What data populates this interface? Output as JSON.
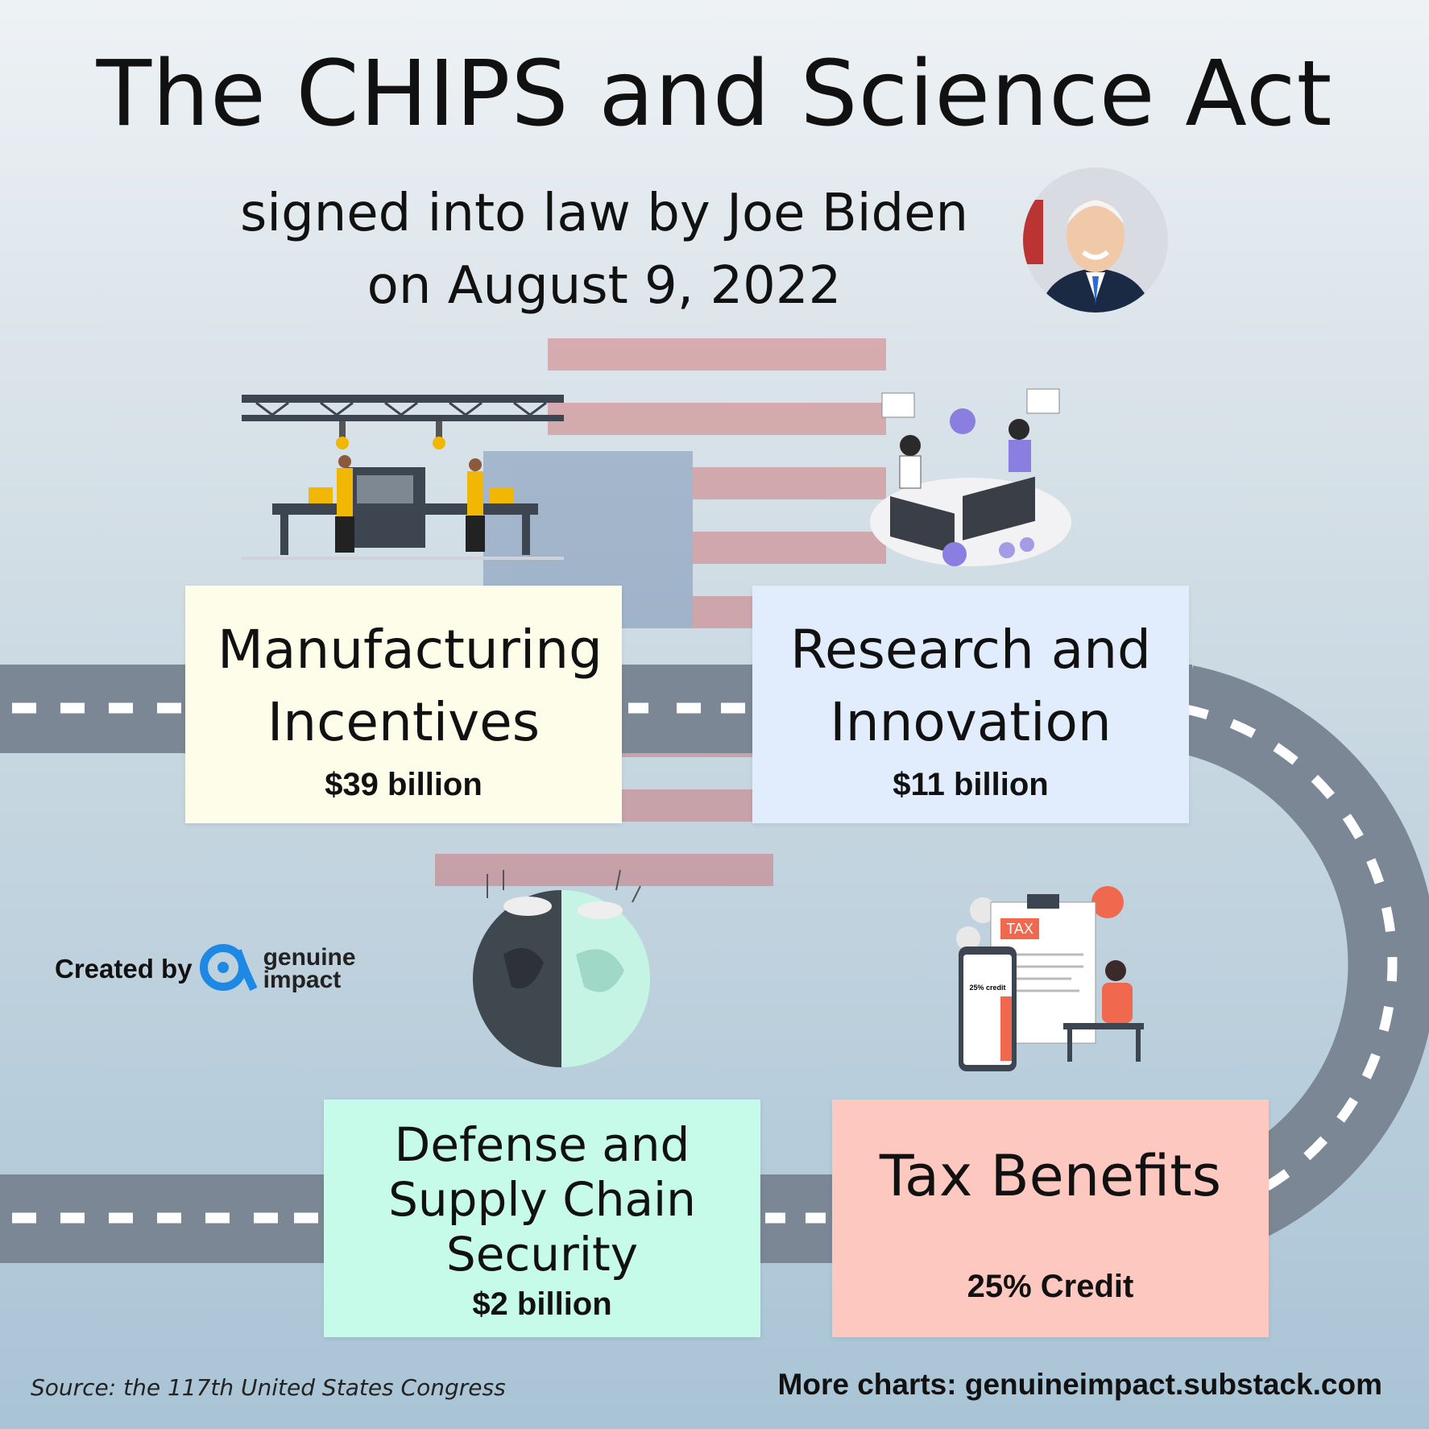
{
  "header": {
    "title": "The CHIPS and Science Act",
    "subtitle_line1": "signed into law by Joe Biden",
    "subtitle_line2": "on August 9, 2022"
  },
  "boxes": [
    {
      "label": "Manufacturing Incentives",
      "amount": "$39 billion",
      "color": "#fdfde9"
    },
    {
      "label": "Research and Innovation",
      "amount": "$11 billion",
      "color": "#e1ecfc"
    },
    {
      "label": "Defense and Supply Chain Security",
      "amount": "$2 billion",
      "color": "#c7fbe9"
    },
    {
      "label": "Tax Benefits",
      "amount": "25% Credit",
      "color": "#fdc8bf"
    }
  ],
  "calculator": {
    "screen_text": "25% credit"
  },
  "clipboard": {
    "tag": "TAX"
  },
  "credits": {
    "created_by": "Created by",
    "brand_line1": "genuine",
    "brand_line2": "impact",
    "brand_color": "#1e88e5"
  },
  "footer": {
    "source": "Source: the 117th United States Congress",
    "more": "More charts: genuineimpact.substack.com"
  },
  "icons": [
    "factory-illustration",
    "research-illustration",
    "globe-illustration",
    "tax-illustration",
    "avatar-photo",
    "genuine-impact-logo-icon"
  ]
}
